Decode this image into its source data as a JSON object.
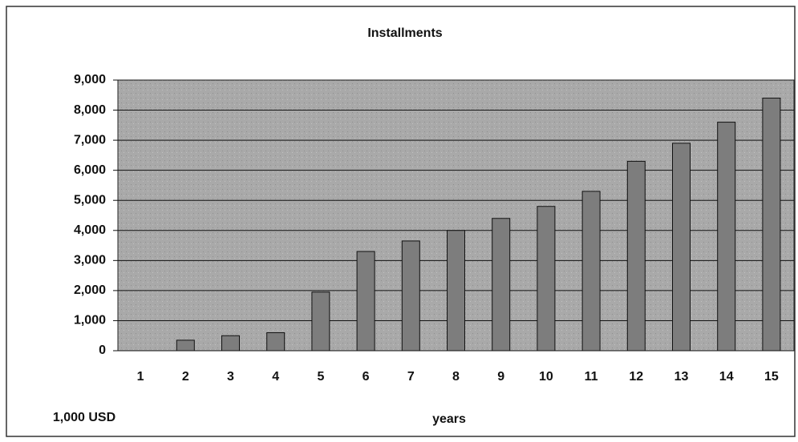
{
  "chart_data": {
    "type": "bar",
    "title": "Installments",
    "xlabel": "years",
    "ylabel": "1,000 USD",
    "categories": [
      "1",
      "2",
      "3",
      "4",
      "5",
      "6",
      "7",
      "8",
      "9",
      "10",
      "11",
      "12",
      "13",
      "14",
      "15"
    ],
    "values": [
      0,
      350,
      500,
      600,
      1950,
      3300,
      3650,
      4000,
      4400,
      4800,
      5300,
      6300,
      6900,
      7600,
      8400
    ],
    "color": "#7d7d7d",
    "ylim": [
      0,
      9000
    ],
    "yticks": [
      0,
      {
        "value": 1000,
        "label": "1,000"
      },
      {
        "value": 2000,
        "label": "2,000"
      },
      {
        "value": 3000,
        "label": "3,000"
      },
      {
        "value": 4000,
        "label": "4,000"
      },
      {
        "value": 5000,
        "label": "5,000"
      },
      {
        "value": 6000,
        "label": "6,000"
      },
      {
        "value": 7000,
        "label": "7,000"
      },
      {
        "value": 8000,
        "label": "8,000"
      },
      {
        "value": 9000,
        "label": "9,000"
      }
    ],
    "grid": true
  }
}
